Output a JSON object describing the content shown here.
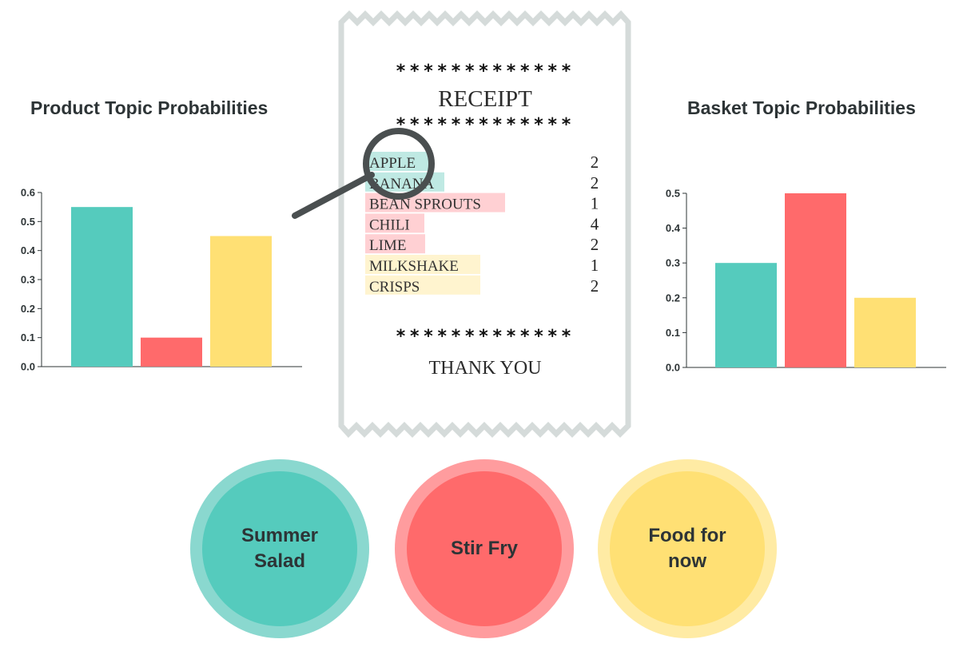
{
  "chart_data": [
    {
      "type": "bar",
      "title": "Product Topic Probabilities",
      "categories": [
        "Summer Salad",
        "Stir Fry",
        "Food for now"
      ],
      "values": [
        0.55,
        0.1,
        0.45
      ],
      "colors": [
        "#55cbbd",
        "#ff6a6b",
        "#ffe074"
      ],
      "yticks": [
        "0.0",
        "0.1",
        "0.2",
        "0.3",
        "0.4",
        "0.5",
        "0.6"
      ],
      "ylim": [
        0,
        0.6
      ],
      "grid": false
    },
    {
      "type": "bar",
      "title": "Basket Topic Probabilities",
      "categories": [
        "Summer Salad",
        "Stir Fry",
        "Food for now"
      ],
      "values": [
        0.3,
        0.5,
        0.2
      ],
      "colors": [
        "#55cbbd",
        "#ff6a6b",
        "#ffe074"
      ],
      "yticks": [
        "0.0",
        "0.1",
        "0.2",
        "0.3",
        "0.4",
        "0.5"
      ],
      "ylim": [
        0,
        0.5
      ],
      "grid": false
    }
  ],
  "receipt": {
    "stars": "*************",
    "title": "RECEIPT",
    "items": [
      {
        "name": "APPLE",
        "qty": "2",
        "topic": "summer"
      },
      {
        "name": "BANANA",
        "qty": "2",
        "topic": "summer"
      },
      {
        "name": "BEAN SPROUTS",
        "qty": "1",
        "topic": "stir"
      },
      {
        "name": "CHILI",
        "qty": "4",
        "topic": "stir"
      },
      {
        "name": "LIME",
        "qty": "2",
        "topic": "stir"
      },
      {
        "name": "MILKSHAKE",
        "qty": "1",
        "topic": "food"
      },
      {
        "name": "CRISPS",
        "qty": "2",
        "topic": "food"
      }
    ],
    "footer": "THANK YOU"
  },
  "topics": {
    "summer": {
      "line1": "Summer",
      "line2": "Salad"
    },
    "stir": {
      "line1": "Stir Fry"
    },
    "food": {
      "line1": "Food for",
      "line2": "now"
    }
  },
  "colors": {
    "summer": "#55cbbd",
    "stir": "#ff6a6b",
    "food": "#ffe074",
    "highlight_summer": "#bfe9e3",
    "highlight_stir": "#ffd0d3",
    "highlight_food": "#fff4cf",
    "receipt_border": "#d5dbda",
    "magnifier": "#4a4f50"
  }
}
